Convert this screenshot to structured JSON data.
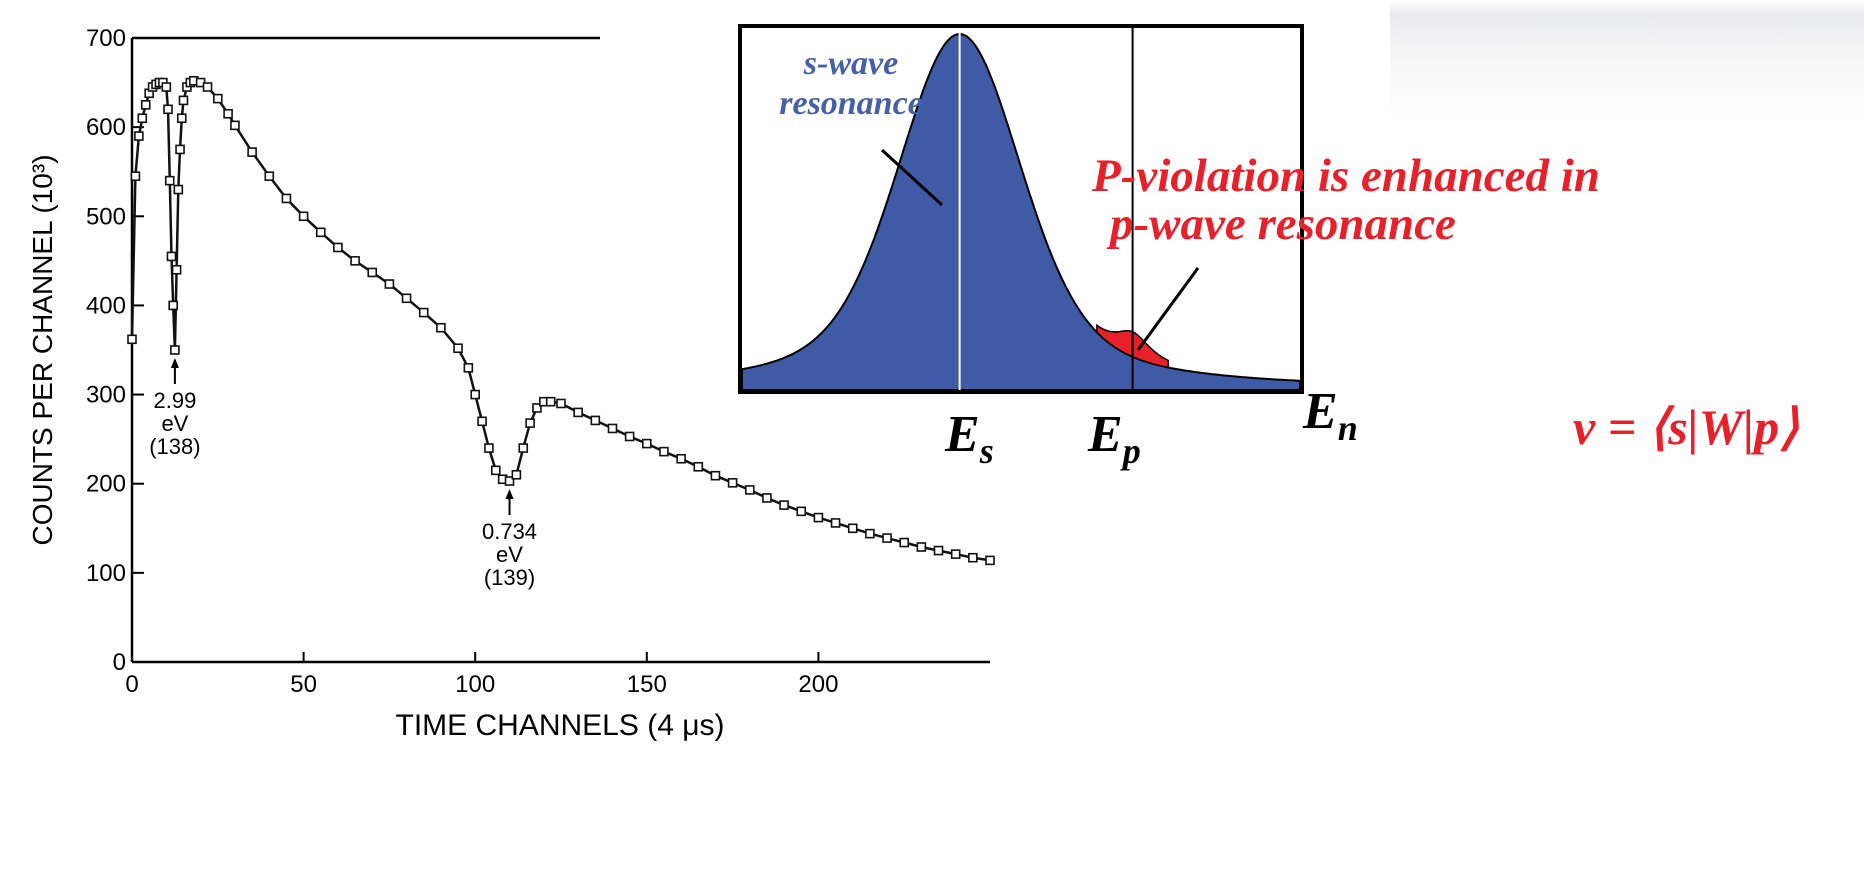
{
  "chart_data": [
    {
      "type": "scatter",
      "title": "",
      "xlabel": "TIME CHANNELS (4 μs)",
      "ylabel": "COUNTS PER CHANNEL (10^3)",
      "xlim": [
        0,
        250
      ],
      "ylim": [
        0,
        700
      ],
      "x_ticks": [
        0,
        50,
        100,
        150,
        200
      ],
      "y_ticks": [
        0,
        100,
        200,
        300,
        400,
        500,
        600,
        700
      ],
      "grid": false,
      "series": [
        {
          "marker": "square",
          "points": [
            [
              0,
              362
            ],
            [
              1,
              545
            ],
            [
              2,
              590
            ],
            [
              3,
              610
            ],
            [
              4,
              625
            ],
            [
              5,
              638
            ],
            [
              6,
              645
            ],
            [
              7,
              648
            ],
            [
              8,
              650
            ],
            [
              9,
              650
            ],
            [
              10,
              645
            ],
            [
              10.5,
              620
            ],
            [
              11,
              540
            ],
            [
              11.5,
              455
            ],
            [
              12,
              400
            ],
            [
              12.5,
              350
            ],
            [
              13,
              440
            ],
            [
              13.5,
              530
            ],
            [
              14,
              575
            ],
            [
              14.5,
              610
            ],
            [
              15,
              630
            ],
            [
              16,
              645
            ],
            [
              17,
              650
            ],
            [
              18,
              652
            ],
            [
              20,
              650
            ],
            [
              22,
              645
            ],
            [
              25,
              632
            ],
            [
              28,
              615
            ],
            [
              30,
              602
            ],
            [
              35,
              572
            ],
            [
              40,
              545
            ],
            [
              45,
              520
            ],
            [
              50,
              500
            ],
            [
              55,
              482
            ],
            [
              60,
              465
            ],
            [
              65,
              450
            ],
            [
              70,
              437
            ],
            [
              75,
              424
            ],
            [
              80,
              408
            ],
            [
              85,
              392
            ],
            [
              90,
              375
            ],
            [
              95,
              352
            ],
            [
              98,
              330
            ],
            [
              100,
              300
            ],
            [
              102,
              270
            ],
            [
              104,
              240
            ],
            [
              106,
              215
            ],
            [
              108,
              205
            ],
            [
              110,
              203
            ],
            [
              112,
              210
            ],
            [
              114,
              240
            ],
            [
              116,
              268
            ],
            [
              118,
              285
            ],
            [
              120,
              292
            ],
            [
              122,
              292
            ],
            [
              125,
              290
            ],
            [
              130,
              280
            ],
            [
              135,
              271
            ],
            [
              140,
              262
            ],
            [
              145,
              253
            ],
            [
              150,
              245
            ],
            [
              155,
              236
            ],
            [
              160,
              228
            ],
            [
              165,
              219
            ],
            [
              170,
              209
            ],
            [
              175,
              201
            ],
            [
              180,
              193
            ],
            [
              185,
              184
            ],
            [
              190,
              176
            ],
            [
              195,
              169
            ],
            [
              200,
              162
            ],
            [
              205,
              156
            ],
            [
              210,
              150
            ],
            [
              215,
              144
            ],
            [
              220,
              139
            ],
            [
              225,
              134
            ],
            [
              230,
              129
            ],
            [
              235,
              125
            ],
            [
              240,
              121
            ],
            [
              245,
              117
            ],
            [
              250,
              114
            ]
          ]
        }
      ],
      "annotations": [
        {
          "x": 12.5,
          "y": 350,
          "lines": [
            "2.99",
            "eV",
            "(138)"
          ]
        },
        {
          "x": 110,
          "y": 203,
          "lines": [
            "0.734",
            "eV",
            "(139)"
          ]
        }
      ]
    },
    {
      "type": "area",
      "title": "",
      "xlabel": "E_n",
      "x_markers": [
        {
          "label": "E_s",
          "x": 0.39
        },
        {
          "label": "E_p",
          "x": 0.7
        }
      ],
      "series": [
        {
          "name": "s-wave resonance",
          "color": "#3f5ba6",
          "center": 0.39,
          "gamma": 0.16,
          "peak": 1.0
        },
        {
          "name": "p-wave resonance",
          "color": "#e8202a",
          "center": 0.7,
          "gamma": 0.04,
          "peak": 0.07
        }
      ],
      "annotations": [
        {
          "text": "P-violation is enhanced in p-wave resonance",
          "color": "#e8202a"
        }
      ]
    }
  ],
  "inset_text": {
    "s_wave_line1": "s-wave",
    "s_wave_line2": "resonance",
    "p_violation_line1": "P-violation is enhanced in",
    "p_violation_line2": "p-wave resonance",
    "es_base": "E",
    "es_sub": "s",
    "ep_base": "E",
    "ep_sub": "p",
    "en_base": "E",
    "en_sub": "n"
  },
  "formula": "v = ⟨s|W|p⟩",
  "colors": {
    "accent_red": "#e8202a",
    "s_wave_blue": "#3f5ba6",
    "label_blue": "#4660a8"
  }
}
